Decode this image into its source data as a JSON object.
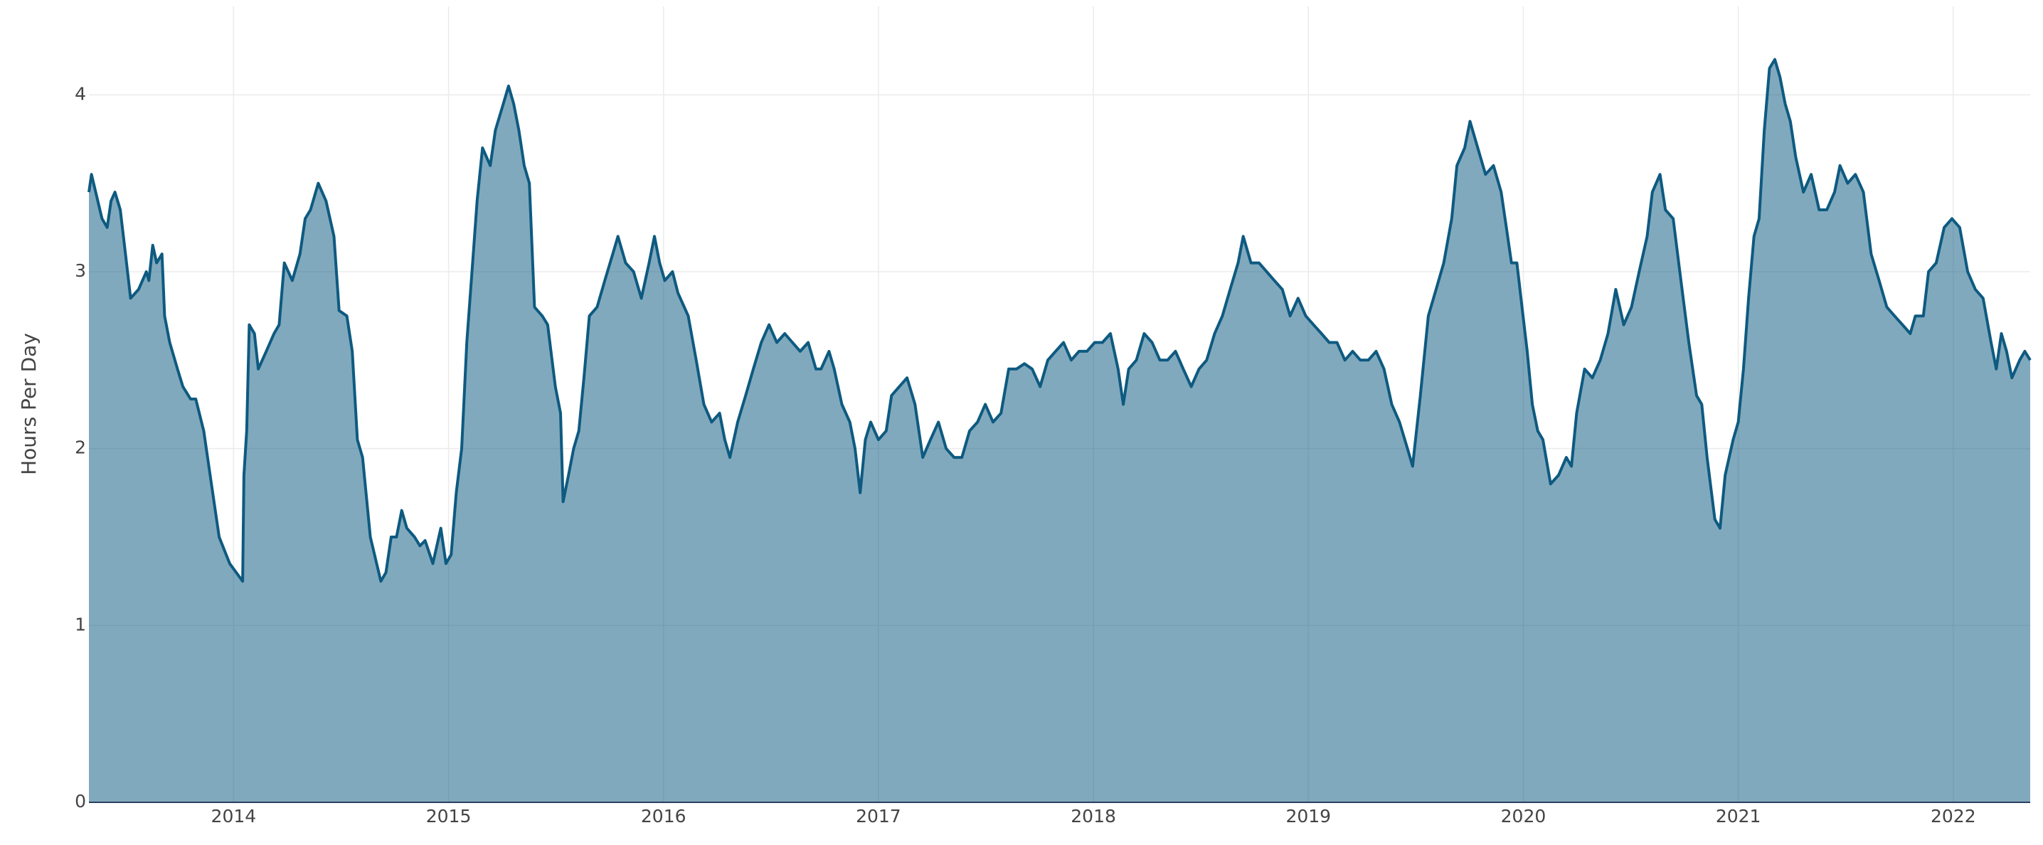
{
  "chart_data": {
    "type": "area",
    "ylabel": "Hours Per Day",
    "x": [
      2013.327,
      2013.339,
      2013.388,
      2013.412,
      2013.43,
      2013.448,
      2013.473,
      2013.497,
      2013.521,
      2013.558,
      2013.594,
      2013.606,
      2013.624,
      2013.642,
      2013.667,
      2013.679,
      2013.703,
      2013.739,
      2013.764,
      2013.8,
      2013.824,
      2013.861,
      2013.897,
      2013.933,
      2013.982,
      2014.042,
      2014.048,
      2014.061,
      2014.073,
      2014.097,
      2014.115,
      2014.152,
      2014.188,
      2014.212,
      2014.236,
      2014.273,
      2014.309,
      2014.333,
      2014.358,
      2014.394,
      2014.43,
      2014.467,
      2014.491,
      2014.527,
      2014.552,
      2014.576,
      2014.6,
      2014.636,
      2014.685,
      2014.709,
      2014.733,
      2014.758,
      2014.782,
      2014.806,
      2014.842,
      2014.867,
      2014.891,
      2014.927,
      2014.964,
      2014.988,
      2015.012,
      2015.036,
      2015.061,
      2015.085,
      2015.109,
      2015.133,
      2015.158,
      2015.194,
      2015.218,
      2015.255,
      2015.279,
      2015.303,
      2015.327,
      2015.352,
      2015.376,
      2015.4,
      2015.436,
      2015.461,
      2015.497,
      2015.521,
      2015.533,
      2015.558,
      2015.582,
      2015.606,
      2015.63,
      2015.655,
      2015.691,
      2015.727,
      2015.764,
      2015.788,
      2015.824,
      2015.861,
      2015.897,
      2015.933,
      2015.958,
      2015.982,
      2016.006,
      2016.042,
      2016.067,
      2016.115,
      2016.152,
      2016.188,
      2016.224,
      2016.261,
      2016.285,
      2016.309,
      2016.345,
      2016.382,
      2016.418,
      2016.455,
      2016.491,
      2016.527,
      2016.564,
      2016.6,
      2016.636,
      2016.673,
      2016.709,
      2016.733,
      2016.77,
      2016.794,
      2016.83,
      2016.867,
      2016.891,
      2016.915,
      2016.939,
      2016.964,
      2017.0,
      2017.036,
      2017.061,
      2017.097,
      2017.133,
      2017.17,
      2017.206,
      2017.242,
      2017.279,
      2017.315,
      2017.352,
      2017.388,
      2017.424,
      2017.461,
      2017.497,
      2017.533,
      2017.57,
      2017.606,
      2017.642,
      2017.679,
      2017.715,
      2017.752,
      2017.788,
      2017.824,
      2017.861,
      2017.897,
      2017.933,
      2017.97,
      2018.006,
      2018.042,
      2018.079,
      2018.115,
      2018.139,
      2018.164,
      2018.2,
      2018.236,
      2018.273,
      2018.309,
      2018.345,
      2018.382,
      2018.418,
      2018.455,
      2018.491,
      2018.527,
      2018.564,
      2018.6,
      2018.636,
      2018.673,
      2018.697,
      2018.733,
      2018.77,
      2018.806,
      2018.842,
      2018.879,
      2018.915,
      2018.952,
      2018.988,
      2019.024,
      2019.061,
      2019.097,
      2019.133,
      2019.17,
      2019.206,
      2019.242,
      2019.279,
      2019.315,
      2019.352,
      2019.388,
      2019.424,
      2019.461,
      2019.485,
      2019.521,
      2019.558,
      2019.594,
      2019.63,
      2019.667,
      2019.691,
      2019.727,
      2019.752,
      2019.788,
      2019.824,
      2019.861,
      2019.897,
      2019.921,
      2019.945,
      2019.97,
      2019.994,
      2020.018,
      2020.042,
      2020.067,
      2020.091,
      2020.127,
      2020.164,
      2020.2,
      2020.224,
      2020.248,
      2020.285,
      2020.321,
      2020.358,
      2020.394,
      2020.43,
      2020.467,
      2020.503,
      2020.539,
      2020.576,
      2020.6,
      2020.636,
      2020.661,
      2020.697,
      2020.733,
      2020.77,
      2020.806,
      2020.83,
      2020.855,
      2020.891,
      2020.915,
      2020.939,
      2020.976,
      2021.0,
      2021.024,
      2021.048,
      2021.073,
      2021.097,
      2021.121,
      2021.145,
      2021.17,
      2021.194,
      2021.218,
      2021.242,
      2021.267,
      2021.303,
      2021.339,
      2021.376,
      2021.412,
      2021.448,
      2021.473,
      2021.509,
      2021.545,
      2021.582,
      2021.618,
      2021.655,
      2021.691,
      2021.727,
      2021.764,
      2021.8,
      2021.824,
      2021.861,
      2021.885,
      2021.921,
      2021.958,
      2021.994,
      2022.03,
      2022.067,
      2022.103,
      2022.139,
      2022.176,
      2022.2,
      2022.224,
      2022.248,
      2022.273,
      2022.309,
      2022.333,
      2022.358
    ],
    "values": [
      3.45,
      3.55,
      3.3,
      3.25,
      3.4,
      3.45,
      3.35,
      3.1,
      2.85,
      2.9,
      3.0,
      2.95,
      3.15,
      3.05,
      3.1,
      2.75,
      2.6,
      2.45,
      2.35,
      2.28,
      2.28,
      2.1,
      1.8,
      1.5,
      1.35,
      1.25,
      1.85,
      2.1,
      2.7,
      2.65,
      2.45,
      2.55,
      2.65,
      2.7,
      3.05,
      2.95,
      3.1,
      3.3,
      3.35,
      3.5,
      3.4,
      3.2,
      2.78,
      2.75,
      2.55,
      2.05,
      1.95,
      1.5,
      1.25,
      1.3,
      1.5,
      1.5,
      1.65,
      1.55,
      1.5,
      1.45,
      1.48,
      1.35,
      1.55,
      1.35,
      1.4,
      1.75,
      2.0,
      2.6,
      3.0,
      3.4,
      3.7,
      3.6,
      3.8,
      3.95,
      4.05,
      3.95,
      3.8,
      3.6,
      3.5,
      2.8,
      2.75,
      2.7,
      2.35,
      2.2,
      1.7,
      1.85,
      2.0,
      2.1,
      2.4,
      2.75,
      2.8,
      2.95,
      3.1,
      3.2,
      3.05,
      3.0,
      2.85,
      3.05,
      3.2,
      3.05,
      2.95,
      3.0,
      2.88,
      2.75,
      2.5,
      2.25,
      2.15,
      2.2,
      2.05,
      1.95,
      2.15,
      2.3,
      2.45,
      2.6,
      2.7,
      2.6,
      2.65,
      2.6,
      2.55,
      2.6,
      2.45,
      2.45,
      2.55,
      2.45,
      2.25,
      2.15,
      2.0,
      1.75,
      2.05,
      2.15,
      2.05,
      2.1,
      2.3,
      2.35,
      2.4,
      2.25,
      1.95,
      2.05,
      2.15,
      2.0,
      1.95,
      1.95,
      2.1,
      2.15,
      2.25,
      2.15,
      2.2,
      2.45,
      2.45,
      2.48,
      2.45,
      2.35,
      2.5,
      2.55,
      2.6,
      2.5,
      2.55,
      2.55,
      2.6,
      2.6,
      2.65,
      2.45,
      2.25,
      2.45,
      2.5,
      2.65,
      2.6,
      2.5,
      2.5,
      2.55,
      2.45,
      2.35,
      2.45,
      2.5,
      2.65,
      2.75,
      2.9,
      3.05,
      3.2,
      3.05,
      3.05,
      3.0,
      2.95,
      2.9,
      2.75,
      2.85,
      2.75,
      2.7,
      2.65,
      2.6,
      2.6,
      2.5,
      2.55,
      2.5,
      2.5,
      2.55,
      2.45,
      2.25,
      2.15,
      2.0,
      1.9,
      2.3,
      2.75,
      2.9,
      3.05,
      3.3,
      3.6,
      3.7,
      3.85,
      3.7,
      3.55,
      3.6,
      3.45,
      3.25,
      3.05,
      3.05,
      2.8,
      2.55,
      2.25,
      2.1,
      2.05,
      1.8,
      1.85,
      1.95,
      1.9,
      2.2,
      2.45,
      2.4,
      2.5,
      2.65,
      2.9,
      2.7,
      2.8,
      3.0,
      3.2,
      3.45,
      3.55,
      3.35,
      3.3,
      2.95,
      2.6,
      2.3,
      2.25,
      1.95,
      1.6,
      1.55,
      1.85,
      2.05,
      2.15,
      2.45,
      2.85,
      3.2,
      3.3,
      3.8,
      4.15,
      4.2,
      4.1,
      3.95,
      3.85,
      3.65,
      3.45,
      3.55,
      3.35,
      3.35,
      3.45,
      3.6,
      3.5,
      3.55,
      3.45,
      3.1,
      2.95,
      2.8,
      2.75,
      2.7,
      2.65,
      2.75,
      2.75,
      3.0,
      3.05,
      3.25,
      3.3,
      3.25,
      3.0,
      2.9,
      2.85,
      2.6,
      2.45,
      2.65,
      2.55,
      2.4,
      2.5,
      2.55,
      2.5
    ],
    "color": "#0e5a80",
    "xlim": [
      2013.327,
      2022.358
    ],
    "xticks": [
      2014,
      2015,
      2016,
      2017,
      2018,
      2019,
      2020,
      2021,
      2022
    ],
    "ylim": [
      0,
      4.5
    ],
    "yticks": [
      0,
      1,
      2,
      3,
      4
    ],
    "grid": true
  }
}
